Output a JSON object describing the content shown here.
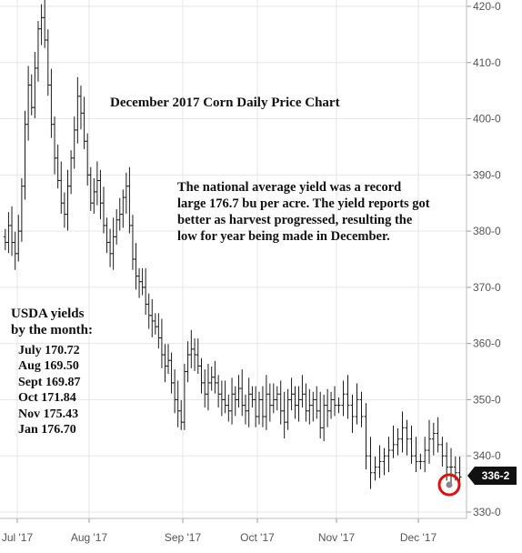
{
  "chart_data": {
    "type": "ohlc",
    "title": "December 2017 Corn Daily Price Chart",
    "y_ticks": [
      "420-0",
      "410-0",
      "400-0",
      "390-0",
      "380-0",
      "370-0",
      "360-0",
      "350-0",
      "340-0",
      "330-0"
    ],
    "y_tick_values": [
      420,
      410,
      400,
      390,
      380,
      370,
      360,
      350,
      340,
      330
    ],
    "ylim": [
      328,
      422
    ],
    "x_ticks": [
      "Jul '17",
      "Aug '17",
      "Sep '17",
      "Oct '17",
      "Nov '17",
      "Dec '17"
    ],
    "last_price": "336-2",
    "colors": {
      "bars": "#1a1a1a",
      "grid": "#e6e6e6",
      "highlight_circle": "#e01010",
      "badge": "#111111"
    },
    "segments": [
      {
        "month_index": 0,
        "values": [
          378,
          381,
          378,
          376,
          380,
          388,
          399,
          406,
          402,
          409,
          416,
          418,
          414,
          406,
          399,
          393,
          389,
          385,
          383,
          388,
          393,
          398,
          404,
          401,
          396,
          390
        ]
      },
      {
        "month_index": 1,
        "values": [
          385,
          387,
          389,
          385,
          381,
          378,
          376,
          379,
          382,
          383,
          386,
          388,
          381,
          375,
          372,
          371,
          370,
          367,
          365,
          364,
          363,
          361,
          358,
          356,
          357,
          353,
          350,
          348,
          346
        ]
      },
      {
        "month_index": 2,
        "values": [
          355,
          358,
          359,
          358,
          356,
          353,
          351,
          353,
          354,
          353,
          351,
          350,
          349,
          348,
          351,
          350,
          352,
          349,
          348,
          351,
          350,
          347
        ]
      },
      {
        "month_index": 3,
        "values": [
          350,
          347,
          351,
          349,
          350,
          351,
          348,
          346,
          350,
          351,
          349,
          350,
          351,
          348,
          349,
          350,
          348,
          345,
          349,
          348,
          350,
          349
        ]
      },
      {
        "month_index": 4,
        "values": [
          349,
          351,
          349,
          347,
          350,
          347,
          340,
          337,
          338,
          339,
          340,
          341,
          342,
          343,
          345,
          343,
          340,
          339
        ]
      },
      {
        "month_index": 5,
        "values": [
          339,
          341,
          343,
          344,
          342,
          340,
          338,
          338,
          337,
          336.25
        ]
      }
    ]
  },
  "annotations": {
    "note_lines": [
      "The national average yield was a record",
      "large 176.7 bu per acre. The yield reports got",
      "better as harvest progressed, resulting the",
      "low for year being made in December."
    ],
    "yields_heading_lines": [
      "USDA yields",
      "by the month:"
    ],
    "yields_lines": [
      "July 170.72",
      "Aug 169.50",
      "Sept 169.87",
      "Oct  171.84",
      "Nov 175.43",
      "Jan  176.70"
    ]
  }
}
